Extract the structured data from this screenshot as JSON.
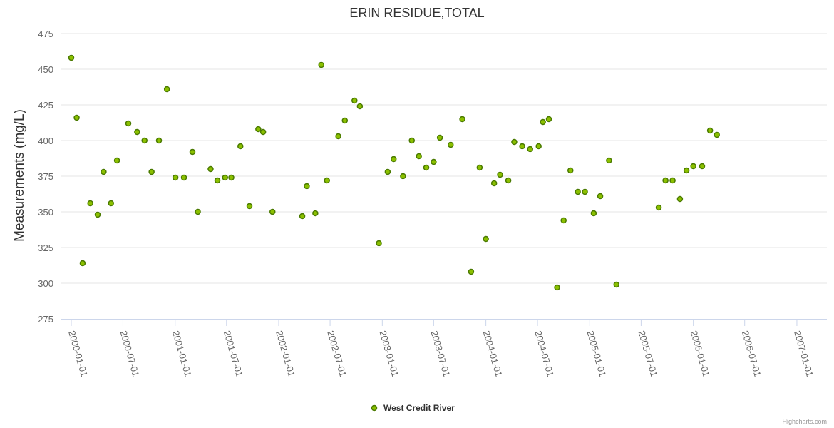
{
  "chart_data": {
    "type": "scatter",
    "title": "ERIN RESIDUE,TOTAL",
    "ylabel": "Measurements (mg/L)",
    "xlabel": "",
    "ylim": [
      275,
      475
    ],
    "yticks": [
      "275",
      "300",
      "325",
      "350",
      "375",
      "400",
      "425",
      "450",
      "475"
    ],
    "xlim": [
      "2000-01-01",
      "2007-03-20"
    ],
    "xticks": [
      "2000-01-01",
      "2000-07-01",
      "2001-01-01",
      "2001-07-01",
      "2002-01-01",
      "2002-07-01",
      "2003-01-01",
      "2003-07-01",
      "2004-01-01",
      "2004-07-01",
      "2005-01-01",
      "2005-07-01",
      "2006-01-01",
      "2006-07-01",
      "2007-01-01"
    ],
    "series": [
      {
        "name": "West Credit River",
        "color": "#8bc000",
        "points": [
          [
            "2000-01-01",
            458
          ],
          [
            "2000-01-20",
            416
          ],
          [
            "2000-02-10",
            314
          ],
          [
            "2000-03-08",
            356
          ],
          [
            "2000-04-03",
            348
          ],
          [
            "2000-04-24",
            378
          ],
          [
            "2000-05-20",
            356
          ],
          [
            "2000-06-10",
            386
          ],
          [
            "2000-07-20",
            412
          ],
          [
            "2000-08-20",
            406
          ],
          [
            "2000-09-15",
            400
          ],
          [
            "2000-10-10",
            378
          ],
          [
            "2000-11-05",
            400
          ],
          [
            "2000-12-03",
            436
          ],
          [
            "2001-01-02",
            374
          ],
          [
            "2001-02-01",
            374
          ],
          [
            "2001-03-03",
            392
          ],
          [
            "2001-03-22",
            350
          ],
          [
            "2001-05-06",
            380
          ],
          [
            "2001-05-30",
            372
          ],
          [
            "2001-06-26",
            374
          ],
          [
            "2001-07-18",
            374
          ],
          [
            "2001-08-19",
            396
          ],
          [
            "2001-09-20",
            354
          ],
          [
            "2001-10-21",
            408
          ],
          [
            "2001-11-07",
            406
          ],
          [
            "2001-12-10",
            350
          ],
          [
            "2002-03-25",
            347
          ],
          [
            "2002-04-10",
            368
          ],
          [
            "2002-05-10",
            349
          ],
          [
            "2002-05-31",
            453
          ],
          [
            "2002-06-20",
            372
          ],
          [
            "2002-07-30",
            403
          ],
          [
            "2002-08-22",
            414
          ],
          [
            "2002-09-25",
            428
          ],
          [
            "2002-10-14",
            424
          ],
          [
            "2002-12-20",
            328
          ],
          [
            "2003-01-20",
            378
          ],
          [
            "2003-02-10",
            387
          ],
          [
            "2003-03-15",
            375
          ],
          [
            "2003-04-15",
            400
          ],
          [
            "2003-05-10",
            389
          ],
          [
            "2003-06-05",
            381
          ],
          [
            "2003-07-01",
            385
          ],
          [
            "2003-07-23",
            402
          ],
          [
            "2003-08-30",
            397
          ],
          [
            "2003-10-10",
            415
          ],
          [
            "2003-11-10",
            308
          ],
          [
            "2003-12-10",
            381
          ],
          [
            "2004-01-01",
            331
          ],
          [
            "2004-01-30",
            370
          ],
          [
            "2004-02-20",
            376
          ],
          [
            "2004-03-20",
            372
          ],
          [
            "2004-04-10",
            399
          ],
          [
            "2004-05-08",
            396
          ],
          [
            "2004-06-05",
            394
          ],
          [
            "2004-07-05",
            396
          ],
          [
            "2004-07-20",
            413
          ],
          [
            "2004-08-10",
            415
          ],
          [
            "2004-09-08",
            297
          ],
          [
            "2004-10-01",
            344
          ],
          [
            "2004-10-25",
            379
          ],
          [
            "2004-11-20",
            364
          ],
          [
            "2004-12-15",
            364
          ],
          [
            "2005-01-15",
            349
          ],
          [
            "2005-02-07",
            361
          ],
          [
            "2005-03-10",
            386
          ],
          [
            "2005-04-05",
            299
          ],
          [
            "2005-09-01",
            353
          ],
          [
            "2005-09-25",
            372
          ],
          [
            "2005-10-20",
            372
          ],
          [
            "2005-11-15",
            359
          ],
          [
            "2005-12-08",
            379
          ],
          [
            "2006-01-01",
            382
          ],
          [
            "2006-02-01",
            382
          ],
          [
            "2006-03-01",
            407
          ],
          [
            "2006-03-25",
            404
          ]
        ]
      }
    ]
  },
  "legend": {
    "label": "West Credit River"
  },
  "credits": "Highcharts.com"
}
